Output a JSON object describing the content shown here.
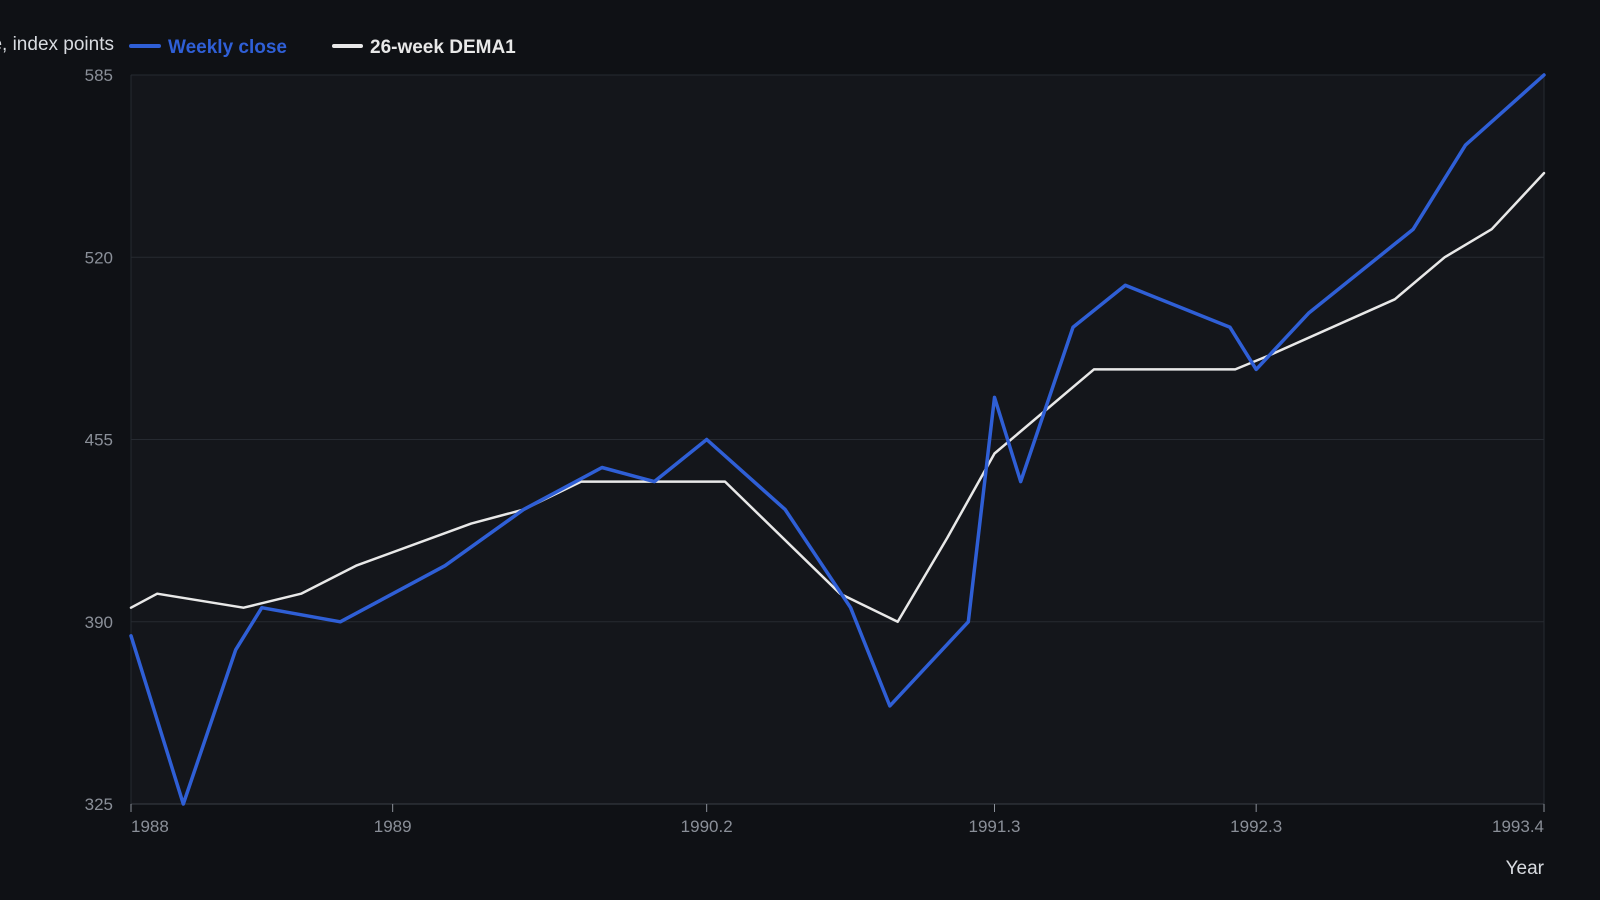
{
  "chart_data": {
    "type": "line",
    "ylabel": "Close, index points",
    "xlabel": "Year",
    "xlim": [
      1988.0,
      1993.4
    ],
    "ylim": [
      325,
      585
    ],
    "x_ticks": [
      1988,
      1989,
      1990.2,
      1991.3,
      1992.3,
      1993.4
    ],
    "x_tick_labels": [
      "1988",
      "1989",
      "1990.2",
      "1991.3",
      "1992.3",
      "1993.4"
    ],
    "y_ticks": [
      325,
      390,
      455,
      520,
      585
    ],
    "y_tick_labels": [
      "325",
      "390",
      "455",
      "520",
      "585"
    ],
    "grid": true,
    "legend_position": "top-left",
    "series": [
      {
        "name": "Weekly close",
        "color": "#2f5fd6",
        "x": [
          1988.0,
          1988.2,
          1988.4,
          1988.5,
          1988.8,
          1989.2,
          1989.5,
          1989.8,
          1990.0,
          1990.2,
          1990.5,
          1990.75,
          1990.9,
          1991.2,
          1991.3,
          1991.4,
          1991.6,
          1991.8,
          1992.2,
          1992.3,
          1992.5,
          1992.9,
          1993.1,
          1993.4
        ],
        "y": [
          385,
          325,
          380,
          395,
          390,
          410,
          430,
          445,
          440,
          455,
          430,
          395,
          360,
          390,
          470,
          440,
          495,
          510,
          495,
          480,
          500,
          530,
          560,
          585
        ]
      },
      {
        "name": "26-week DEMA1",
        "color": "#e8e8e8",
        "x": [
          1988.0,
          1988.1,
          1988.43,
          1988.65,
          1988.86,
          1989.3,
          1989.5,
          1989.72,
          1990.27,
          1990.71,
          1990.93,
          1991.12,
          1991.3,
          1991.68,
          1992.22,
          1992.35,
          1992.83,
          1993.02,
          1993.2,
          1993.4
        ],
        "y": [
          395,
          400,
          395,
          400,
          410,
          425,
          430,
          440,
          440,
          400,
          390,
          420,
          450,
          480,
          480,
          485,
          505,
          520,
          530,
          550
        ]
      }
    ]
  }
}
